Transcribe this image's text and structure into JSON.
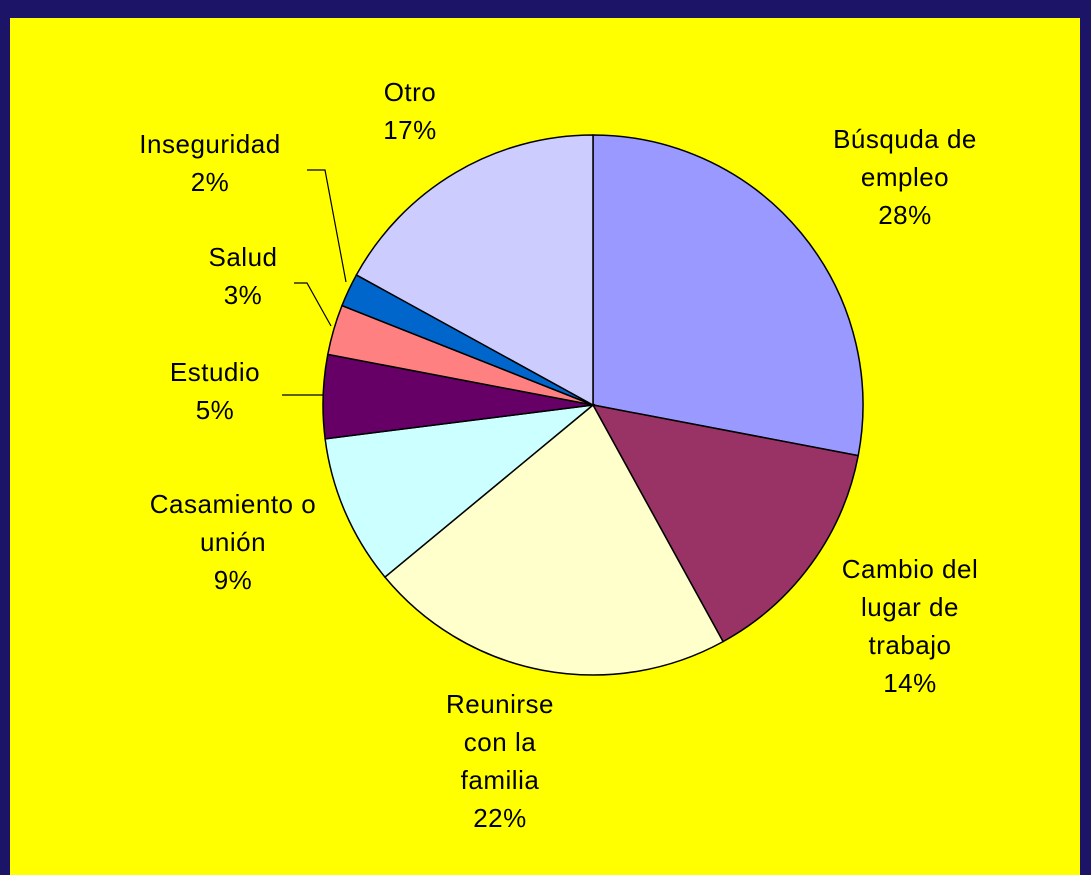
{
  "chart_data": {
    "type": "pie",
    "categories": [
      "Búsquda de empleo",
      "Cambio del lugar de trabajo",
      "Reunirse con la familia",
      "Casamiento o unión",
      "Estudio",
      "Salud",
      "Inseguridad",
      "Otro"
    ],
    "values": [
      28,
      14,
      22,
      9,
      5,
      3,
      2,
      17
    ],
    "value_labels": [
      "28%",
      "14%",
      "22%",
      "9%",
      "5%",
      "3%",
      "2%",
      "17%"
    ],
    "colors": [
      "#9999ff",
      "#993366",
      "#ffffcc",
      "#ccffff",
      "#660066",
      "#ff8080",
      "#0066cc",
      "#ccccff"
    ]
  }
}
